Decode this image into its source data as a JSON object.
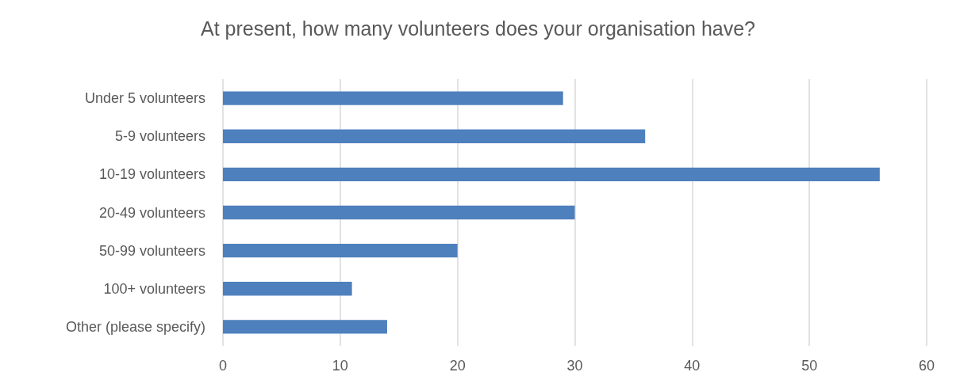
{
  "chart_data": {
    "type": "bar",
    "orientation": "horizontal",
    "title": "At present, how many volunteers does your organisation have?",
    "categories": [
      "Under 5 volunteers",
      "5-9 volunteers",
      "10-19 volunteers",
      "20-49 volunteers",
      "50-99 volunteers",
      "100+ volunteers",
      "Other (please specify)"
    ],
    "values": [
      29,
      36,
      56,
      30,
      20,
      11,
      14
    ],
    "color": "#4e80bd",
    "xlim": [
      0,
      60
    ],
    "xticks": [
      0,
      10,
      20,
      30,
      40,
      50,
      60
    ],
    "grid": "x"
  }
}
